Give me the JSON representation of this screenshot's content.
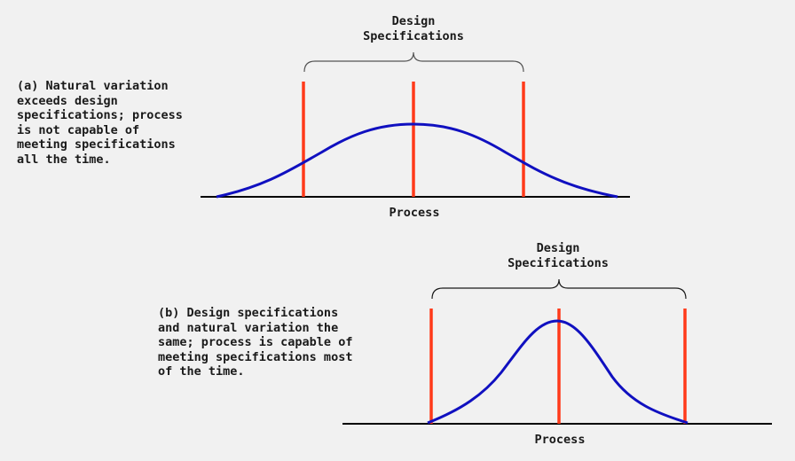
{
  "colors": {
    "background": "#f1f1f1",
    "curve": "#1010c0",
    "spec_line": "#ff3a1a",
    "baseline": "#000000",
    "brace": "#555555",
    "text": "#1a1a1a"
  },
  "panel_a": {
    "caption": "(a) Natural variation\nexceeds design\nspecifications; process\nis not capable of\nmeeting specifications\nall the time.",
    "spec_title": "Design\nSpecifications",
    "axis_label": "Process"
  },
  "panel_b": {
    "caption": "(b) Design specifications\nand natural variation the\nsame; process is capable of\nmeeting specifications most\nof the time.",
    "spec_title": "Design\nSpecifications",
    "axis_label": "Process"
  }
}
